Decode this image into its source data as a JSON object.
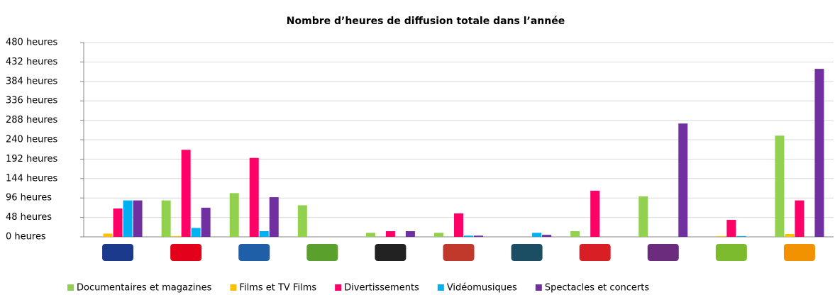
{
  "chart_data": {
    "type": "bar",
    "title": "Nombre d’heures de diffusion totale dans l’année",
    "categories": [
      null,
      null,
      null,
      null,
      null,
      null,
      null,
      null,
      null,
      null,
      null
    ],
    "series": [
      {
        "name": "Documentaires et magazines",
        "color": "#92d050",
        "values": [
          0,
          90,
          108,
          78,
          10,
          10,
          0,
          14,
          100,
          0,
          250
        ]
      },
      {
        "name": "Films et TV Films",
        "color": "#ffc000",
        "values": [
          8,
          2,
          0,
          0,
          0,
          0,
          0,
          0,
          0,
          2,
          7
        ]
      },
      {
        "name": "Divertissements",
        "color": "#ff0066",
        "values": [
          70,
          215,
          195,
          0,
          14,
          58,
          0,
          114,
          0,
          42,
          90
        ]
      },
      {
        "name": "Vidéomusiques",
        "color": "#00b0f0",
        "values": [
          90,
          22,
          14,
          0,
          0,
          3,
          10,
          0,
          0,
          2,
          0
        ]
      },
      {
        "name": "Spectacles et concerts",
        "color": "#7030a0",
        "values": [
          90,
          72,
          98,
          0,
          14,
          3,
          5,
          0,
          280,
          0,
          415
        ]
      }
    ],
    "ylim": [
      0,
      480
    ],
    "yticks": [
      {
        "value": 0,
        "label": "0 heures"
      },
      {
        "value": 48,
        "label": "48 heures"
      },
      {
        "value": 96,
        "label": "96 heures"
      },
      {
        "value": 144,
        "label": "144 heures"
      },
      {
        "value": 192,
        "label": "192 heures"
      },
      {
        "value": 240,
        "label": "240 heures"
      },
      {
        "value": 288,
        "label": "288 heures"
      },
      {
        "value": 336,
        "label": "336 heures"
      },
      {
        "value": 384,
        "label": "384 heures"
      },
      {
        "value": 432,
        "label": "432 heures"
      },
      {
        "value": 480,
        "label": "480 heures"
      }
    ],
    "grid": true,
    "legend": "bottom"
  }
}
